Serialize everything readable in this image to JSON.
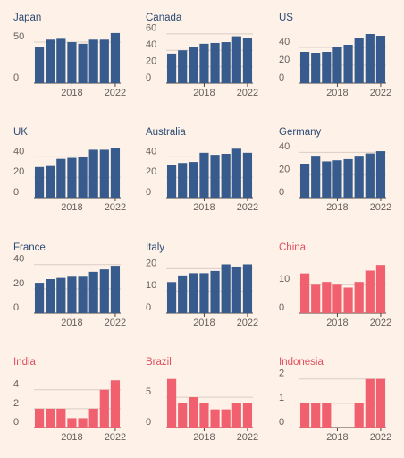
{
  "chart_data": [
    {
      "type": "bar",
      "title": "Japan",
      "categories": [
        null,
        null,
        null,
        "2018",
        null,
        null,
        null,
        "2022"
      ],
      "values": [
        44,
        53,
        54,
        50,
        48,
        53,
        53,
        61
      ],
      "color": "#365b8c",
      "ylim": [
        0,
        62
      ],
      "yticks": [
        0,
        50
      ],
      "grid": true
    },
    {
      "type": "bar",
      "title": "Canada",
      "categories": [
        null,
        null,
        null,
        "2018",
        null,
        null,
        null,
        "2022"
      ],
      "values": [
        36,
        40,
        44,
        48,
        49,
        50,
        57,
        55
      ],
      "color": "#365b8c",
      "ylim": [
        0,
        62
      ],
      "yticks": [
        0,
        20,
        40,
        60
      ],
      "grid": true
    },
    {
      "type": "bar",
      "title": "US",
      "categories": [
        null,
        null,
        null,
        "2018",
        null,
        null,
        null,
        "2022"
      ],
      "values": [
        35,
        34,
        35,
        41,
        43,
        51,
        55,
        53
      ],
      "color": "#365b8c",
      "ylim": [
        0,
        57
      ],
      "yticks": [
        0,
        20,
        40
      ],
      "grid": true
    },
    {
      "type": "bar",
      "title": "UK",
      "categories": [
        null,
        null,
        null,
        "2018",
        null,
        null,
        null,
        "2022"
      ],
      "values": [
        30,
        31,
        38,
        39,
        40,
        47,
        47,
        49
      ],
      "color": "#365b8c",
      "ylim": [
        0,
        50
      ],
      "yticks": [
        0,
        20,
        40
      ],
      "grid": true
    },
    {
      "type": "bar",
      "title": "Australia",
      "categories": [
        null,
        null,
        null,
        "2018",
        null,
        null,
        null,
        "2022"
      ],
      "values": [
        32,
        34,
        35,
        44,
        42,
        43,
        48,
        44
      ],
      "color": "#365b8c",
      "ylim": [
        0,
        50
      ],
      "yticks": [
        0,
        20,
        40
      ],
      "grid": true
    },
    {
      "type": "bar",
      "title": "Germany",
      "categories": [
        null,
        null,
        null,
        "2018",
        null,
        null,
        null,
        "2022"
      ],
      "values": [
        30,
        37,
        32,
        33,
        34,
        37,
        39,
        41
      ],
      "color": "#365b8c",
      "ylim": [
        0,
        45
      ],
      "yticks": [
        0,
        20,
        40
      ],
      "grid": true
    },
    {
      "type": "bar",
      "title": "France",
      "categories": [
        null,
        null,
        null,
        "2018",
        null,
        null,
        null,
        "2022"
      ],
      "values": [
        25,
        28,
        29,
        30,
        30,
        34,
        36,
        39
      ],
      "color": "#365b8c",
      "ylim": [
        0,
        42
      ],
      "yticks": [
        0,
        20,
        40
      ],
      "grid": true
    },
    {
      "type": "bar",
      "title": "Italy",
      "categories": [
        null,
        null,
        null,
        "2018",
        null,
        null,
        null,
        "2022"
      ],
      "values": [
        14,
        17,
        18,
        18,
        19,
        22,
        21,
        22
      ],
      "color": "#365b8c",
      "ylim": [
        0,
        23
      ],
      "yticks": [
        0,
        10,
        20
      ],
      "grid": true
    },
    {
      "type": "bar",
      "title": "China",
      "categories": [
        null,
        null,
        null,
        "2018",
        null,
        null,
        null,
        "2022"
      ],
      "values": [
        14,
        10,
        11,
        10,
        9,
        11,
        15,
        17
      ],
      "color": "#f0606e",
      "ylim": [
        0,
        18
      ],
      "yticks": [
        0,
        10
      ],
      "grid": true
    },
    {
      "type": "bar",
      "title": "India",
      "categories": [
        null,
        null,
        null,
        "2018",
        null,
        null,
        null,
        "2022"
      ],
      "values": [
        2,
        2,
        2,
        1,
        1,
        2,
        4,
        5
      ],
      "color": "#f0606e",
      "ylim": [
        0,
        5.4
      ],
      "yticks": [
        0,
        2,
        4
      ],
      "grid": true
    },
    {
      "type": "bar",
      "title": "Brazil",
      "categories": [
        null,
        null,
        null,
        "2018",
        null,
        null,
        null,
        "2022"
      ],
      "values": [
        8,
        4,
        5,
        4,
        3,
        3,
        4,
        4
      ],
      "color": "#f0606e",
      "ylim": [
        0,
        8.4
      ],
      "yticks": [
        0,
        5
      ],
      "grid": true
    },
    {
      "type": "bar",
      "title": "Indonesia",
      "categories": [
        null,
        null,
        null,
        "2018",
        null,
        null,
        null,
        "2022"
      ],
      "values": [
        1,
        1,
        1,
        0,
        0,
        1,
        2,
        2
      ],
      "color": "#f0606e",
      "ylim": [
        0,
        2.1
      ],
      "yticks": [
        0,
        1,
        2
      ],
      "grid": true
    }
  ]
}
